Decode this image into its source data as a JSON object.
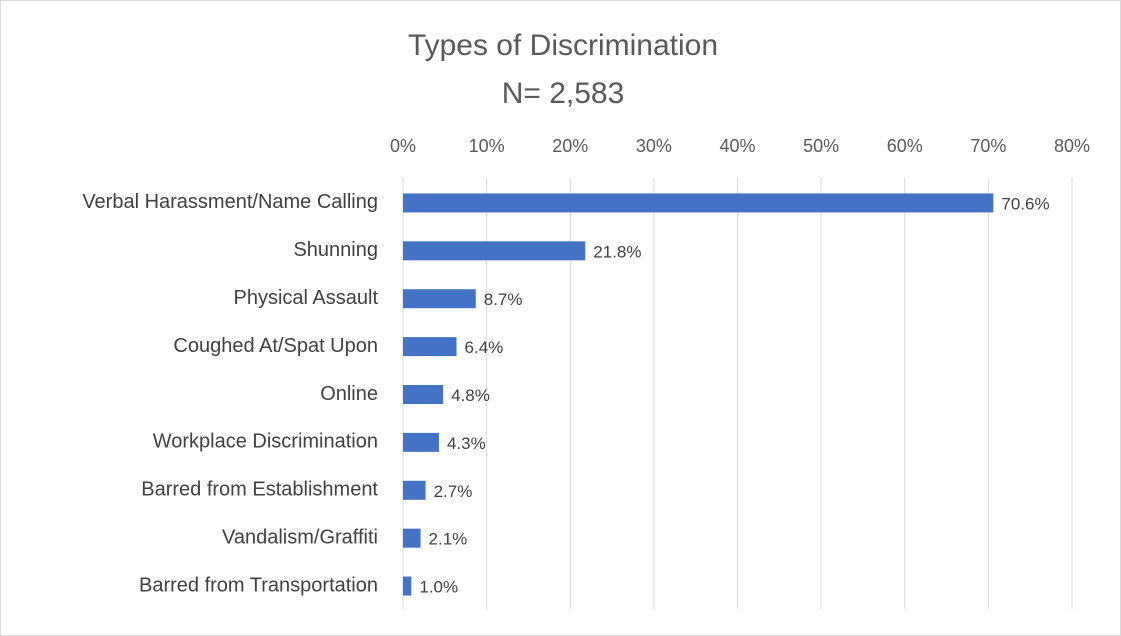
{
  "chart_data": {
    "type": "bar",
    "orientation": "horizontal",
    "title": "Types of Discrimination",
    "subtitle": "N= 2,583",
    "categories": [
      "Verbal Harassment/Name Calling",
      "Shunning",
      "Physical Assault",
      "Coughed At/Spat Upon",
      "Online",
      "Workplace Discrimination",
      "Barred from Establishment",
      "Vandalism/Graffiti",
      "Barred from Transportation"
    ],
    "values": [
      70.6,
      21.8,
      8.7,
      6.4,
      4.8,
      4.3,
      2.7,
      2.1,
      1.0
    ],
    "value_labels": [
      "70.6%",
      "21.8%",
      "8.7%",
      "6.4%",
      "4.8%",
      "4.3%",
      "2.7%",
      "2.1%",
      "1.0%"
    ],
    "color": "#4472c4",
    "xlim": [
      0,
      80
    ],
    "xticks": [
      {
        "value": 0,
        "label": "0%"
      },
      {
        "value": 10,
        "label": "10%"
      },
      {
        "value": 20,
        "label": "20%"
      },
      {
        "value": 30,
        "label": "30%"
      },
      {
        "value": 40,
        "label": "40%"
      },
      {
        "value": 50,
        "label": "50%"
      },
      {
        "value": 60,
        "label": "60%"
      },
      {
        "value": 70,
        "label": "70%"
      },
      {
        "value": 80,
        "label": "80%"
      }
    ],
    "grid": true
  }
}
